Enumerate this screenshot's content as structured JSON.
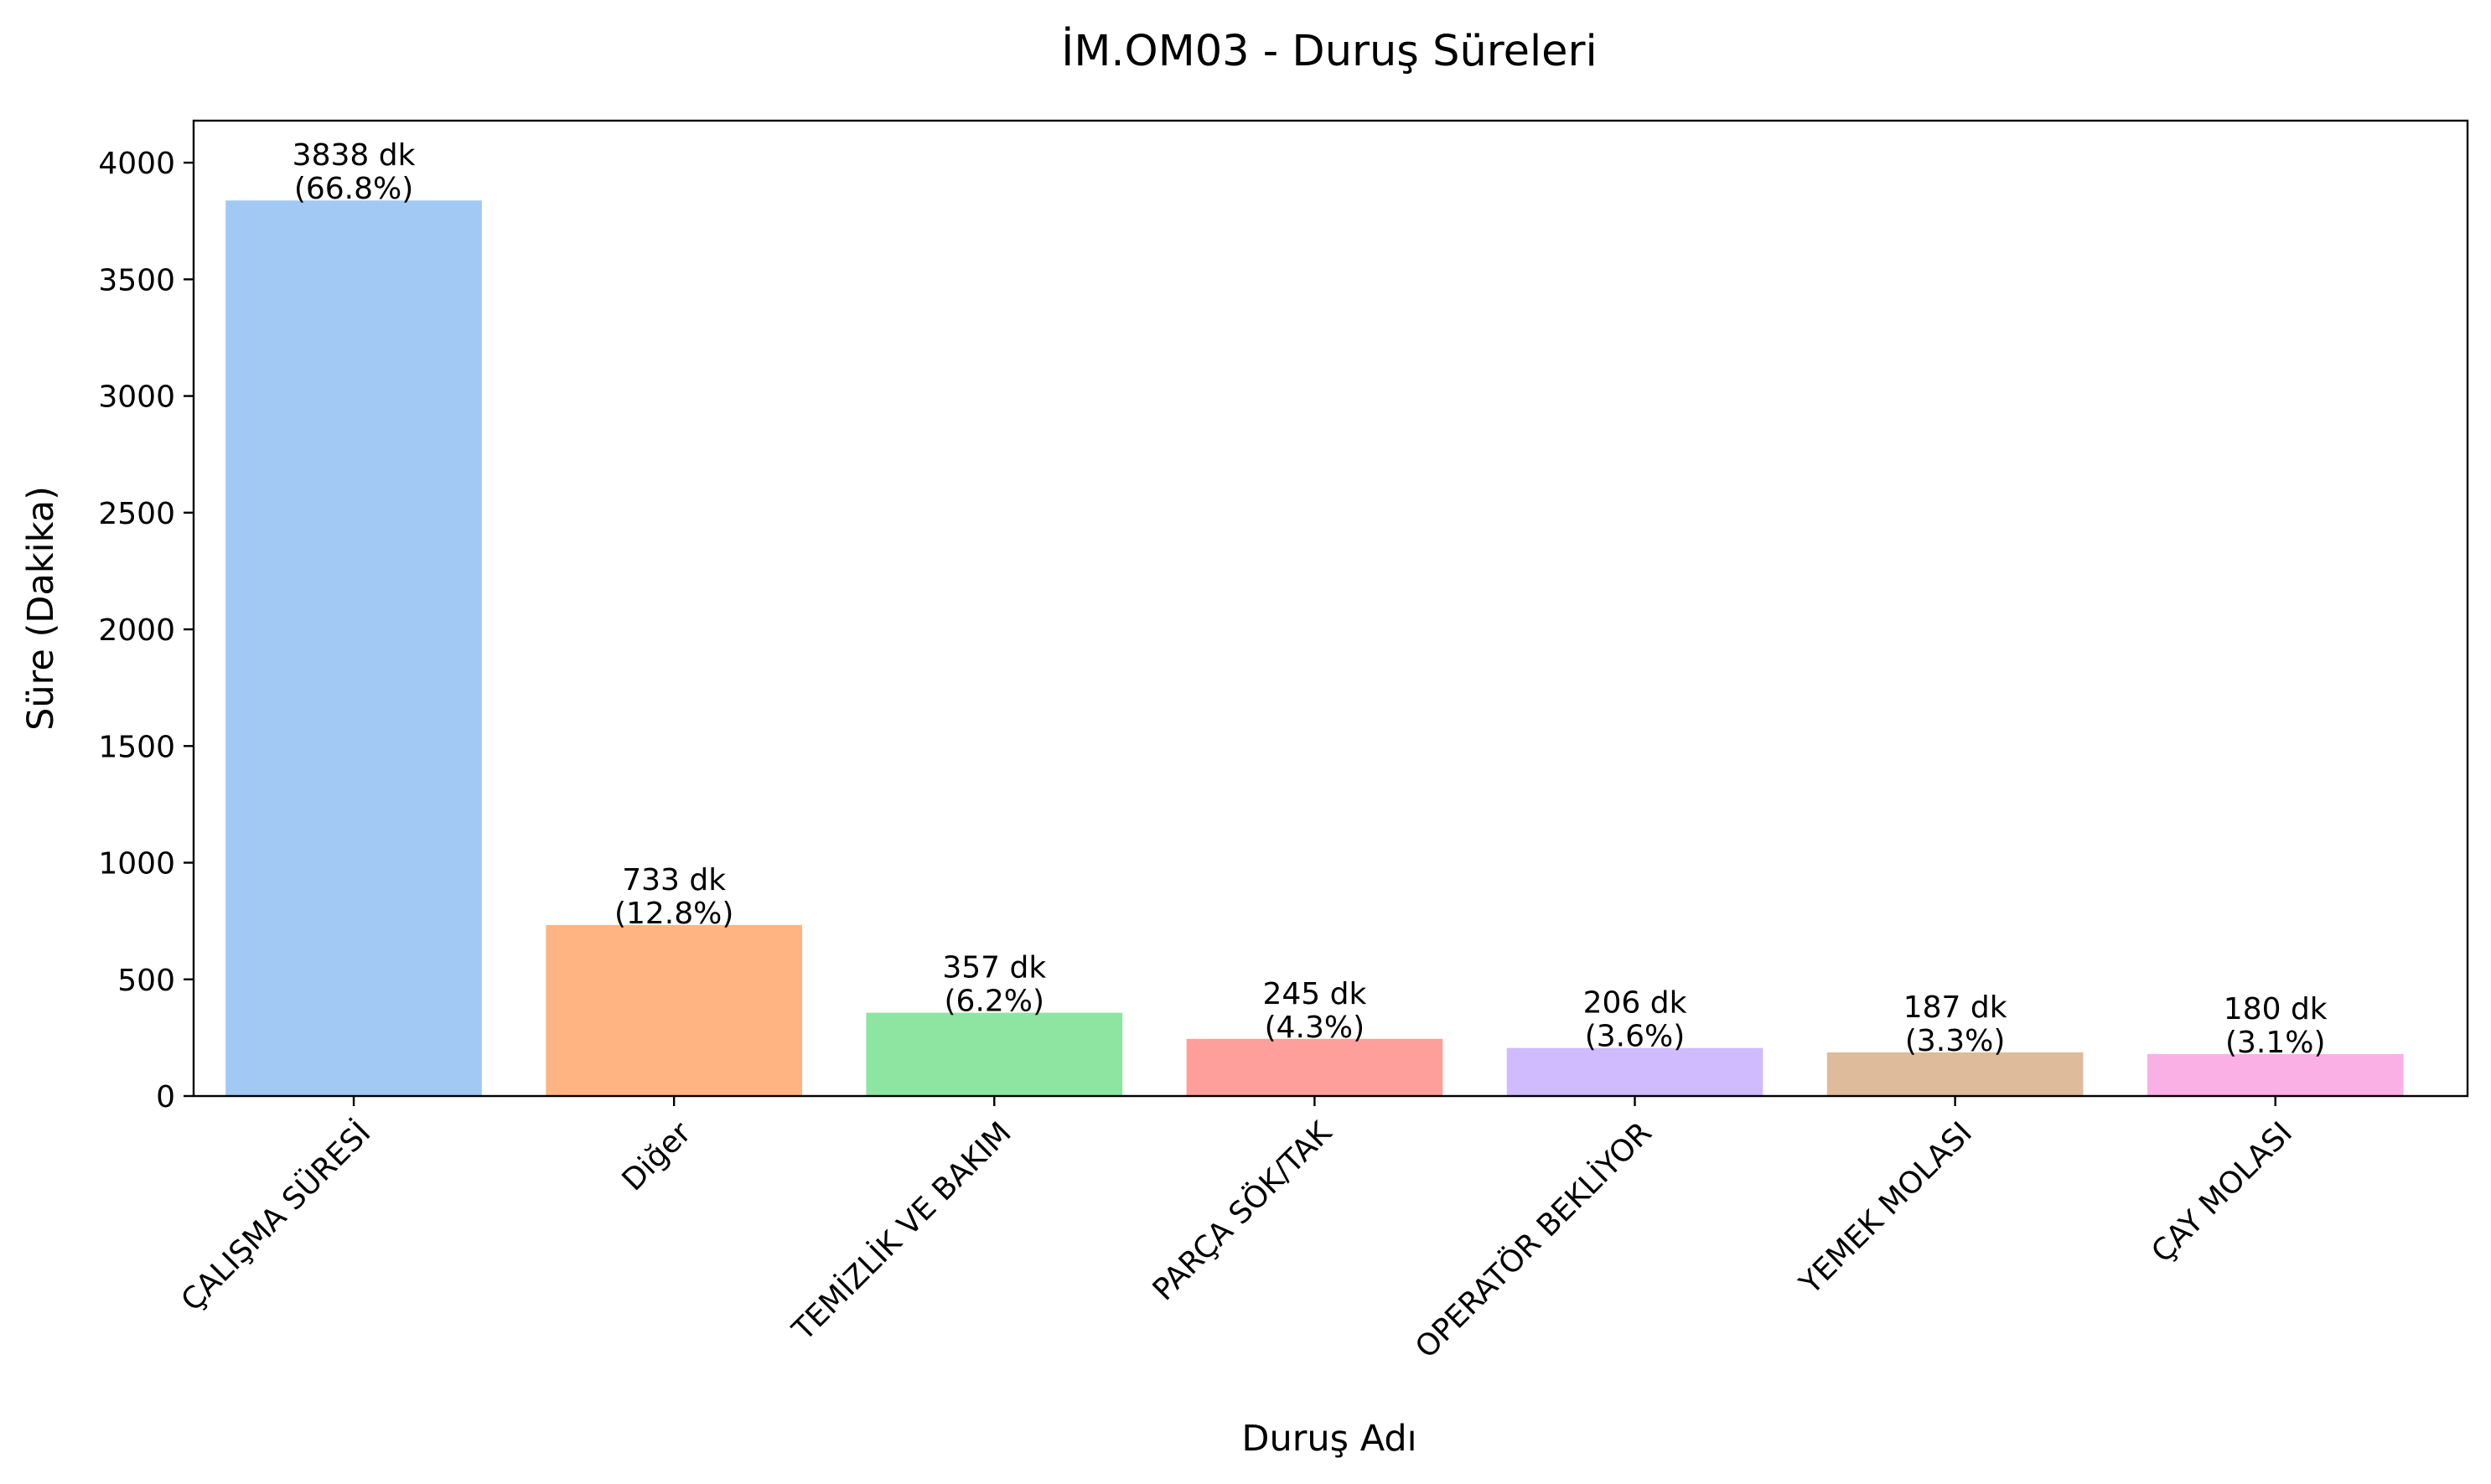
{
  "chart_data": {
    "type": "bar",
    "title": "İM.OM03 - Duruş Süreleri",
    "xlabel": "Duruş Adı",
    "ylabel": "Süre (Dakika)",
    "ylim": [
      0,
      4180
    ],
    "yticks": [
      0,
      500,
      1000,
      1500,
      2000,
      2500,
      3000,
      3500,
      4000
    ],
    "grid": false,
    "legend": "none",
    "categories": [
      "ÇALIŞMA SÜRESİ",
      "Diğer",
      "TEMİZLİK VE BAKIM",
      "PARÇA SÖK/TAK",
      "OPERATÖR BEKLİYOR",
      "YEMEK MOLASI",
      "ÇAY MOLASI"
    ],
    "values": [
      3838,
      733,
      357,
      245,
      206,
      187,
      180
    ],
    "value_labels": [
      "3838 dk",
      "733 dk",
      "357 dk",
      "245 dk",
      "206 dk",
      "187 dk",
      "180 dk"
    ],
    "percent_labels": [
      "(66.8%)",
      "(12.8%)",
      "(6.2%)",
      "(4.3%)",
      "(3.6%)",
      "(3.3%)",
      "(3.1%)"
    ],
    "colors": [
      "#a1c9f4",
      "#ffb482",
      "#8de5a1",
      "#ff9f9b",
      "#d0bbff",
      "#debb9b",
      "#fab0e4"
    ]
  }
}
